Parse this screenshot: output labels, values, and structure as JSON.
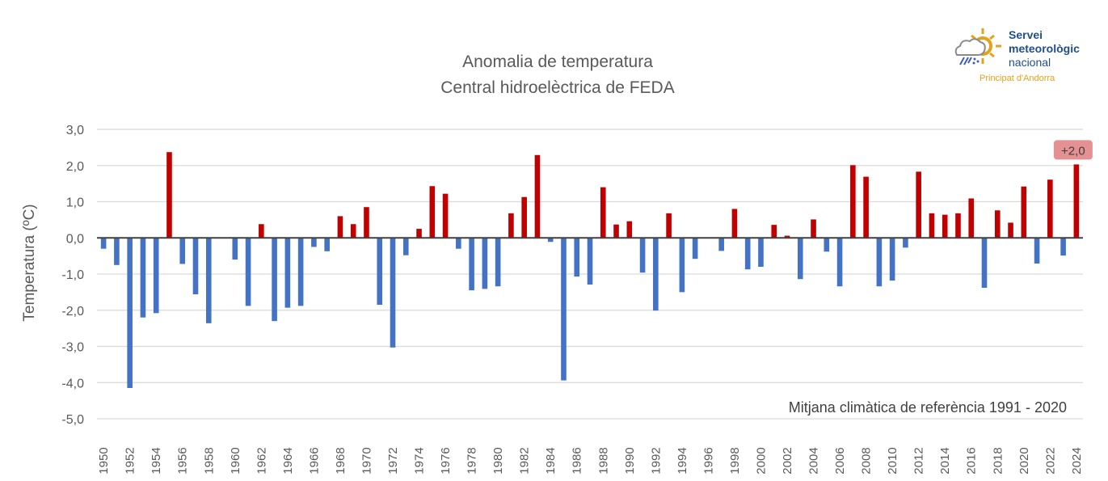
{
  "chart_data": {
    "type": "bar",
    "title": "Anomalia de temperatura",
    "subtitle": "Central hidroelèctrica de FEDA",
    "xlabel": "",
    "ylabel": "Temperatura (ºC)",
    "ylim": [
      -5,
      3
    ],
    "yticks": [
      "3,0",
      "2,0",
      "1,0",
      "0,0",
      "-1,0",
      "-2,0",
      "-3,0",
      "-4,0",
      "-5,0"
    ],
    "grid": true,
    "annotation": "Mitjana climàtica de referència 1991 - 2020",
    "last_label": "+2,0",
    "colors": {
      "positive": "#C00000",
      "negative": "#4472C4"
    },
    "categories": [
      1950,
      1951,
      1952,
      1953,
      1954,
      1955,
      1956,
      1957,
      1958,
      1959,
      1960,
      1961,
      1962,
      1963,
      1964,
      1965,
      1966,
      1967,
      1968,
      1969,
      1970,
      1971,
      1972,
      1973,
      1974,
      1975,
      1976,
      1977,
      1978,
      1979,
      1980,
      1981,
      1982,
      1983,
      1984,
      1985,
      1986,
      1987,
      1988,
      1989,
      1990,
      1991,
      1992,
      1993,
      1994,
      1995,
      1996,
      1997,
      1998,
      1999,
      2000,
      2001,
      2002,
      2003,
      2004,
      2005,
      2006,
      2007,
      2008,
      2009,
      2010,
      2011,
      2012,
      2013,
      2014,
      2015,
      2016,
      2017,
      2018,
      2019,
      2020,
      2021,
      2022,
      2023,
      2024
    ],
    "values": [
      -0.3,
      -0.75,
      -4.15,
      -2.2,
      -2.08,
      2.37,
      -0.72,
      -1.56,
      -2.36,
      0,
      -0.6,
      -1.88,
      0.38,
      -2.3,
      -1.93,
      -1.88,
      -0.25,
      -0.37,
      0.6,
      0.38,
      0.85,
      -1.85,
      -3.03,
      -0.48,
      0.25,
      1.43,
      1.22,
      -0.3,
      -1.45,
      -1.41,
      -1.34,
      0.68,
      1.13,
      2.29,
      -0.11,
      -3.94,
      -1.07,
      -1.29,
      1.4,
      0.37,
      0.46,
      -0.96,
      -2.01,
      0.68,
      -1.5,
      -0.58,
      0,
      -0.36,
      0.8,
      -0.87,
      -0.8,
      0.36,
      0.06,
      -1.14,
      0.51,
      -0.38,
      -1.34,
      2.01,
      1.69,
      -1.34,
      -1.18,
      -0.27,
      1.83,
      0.68,
      0.64,
      0.68,
      1.09,
      -1.38,
      0.76,
      0.42,
      1.42,
      -0.71,
      1.61,
      -0.49,
      2.03
    ]
  },
  "logo": {
    "line1": "Servei",
    "line2": "meteorològic",
    "line3": "nacional",
    "line4": "Principat d'Andorra"
  }
}
